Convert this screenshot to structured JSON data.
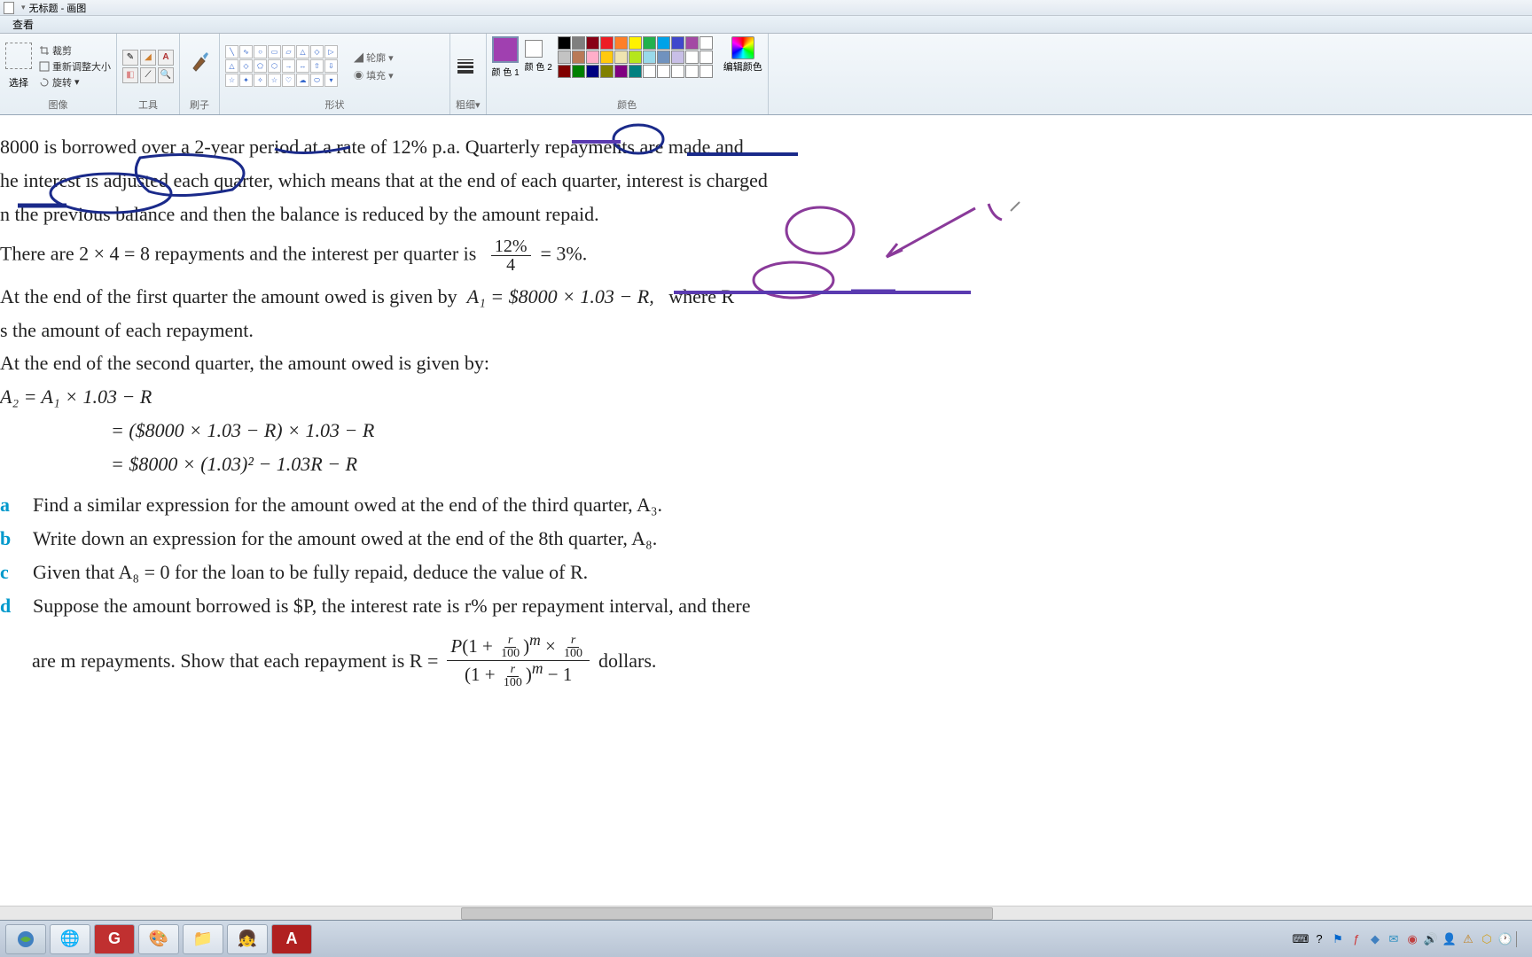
{
  "window": {
    "title": "无标题 - 画图",
    "menu_view": "查看"
  },
  "ribbon": {
    "image": {
      "label": "图像",
      "select": "选择",
      "crop": "裁剪",
      "resize": "重新调整大小",
      "rotate": "旋转"
    },
    "tools": {
      "label": "工具"
    },
    "brushes": {
      "label": "刷子"
    },
    "shapes": {
      "label": "形状",
      "outline": "轮廓",
      "fill": "填充"
    },
    "stroke": {
      "label": "粗细"
    },
    "colors": {
      "label": "颜色",
      "color1": "颜 色 1",
      "color2": "颜 色 2",
      "edit": "编辑颜色",
      "primary": "#a040b0",
      "secondary": "#ffffff",
      "palette_row1": [
        "#000000",
        "#7f7f7f",
        "#880015",
        "#ed1c24",
        "#ff7f27",
        "#fff200",
        "#22b14c",
        "#00a2e8",
        "#3f48cc",
        "#a349a4",
        "#ffffff"
      ],
      "palette_row2": [
        "#c3c3c3",
        "#b97a57",
        "#ffaec9",
        "#ffc90e",
        "#efe4b0",
        "#b5e61d",
        "#99d9ea",
        "#7092be",
        "#c8bfe7",
        "#ffffff",
        "#ffffff"
      ],
      "palette_row3": [
        "#800000",
        "#008000",
        "#000080",
        "#808000",
        "#800080",
        "#008080",
        "#ffffff",
        "#ffffff",
        "#ffffff",
        "#ffffff",
        "#ffffff"
      ]
    }
  },
  "doc": {
    "p1a": "8000 is borrowed over a 2-year period at a rate of 12% p.a. Quarterly repayments are made and",
    "p1b": "he interest is adjusted each quarter, which means that at the end of each quarter, interest is charged",
    "p1c": "n the previous balance and then the balance is reduced by the amount repaid.",
    "p2a": "There are  2 × 4 = 8  repayments and the interest per quarter is",
    "frac_num": "12%",
    "frac_den": "4",
    "p2b": "= 3%.",
    "p3a": "At the end of the first quarter the amount owed is given by",
    "eq1": "A₁ = $8000 × 1.03 − R,",
    "p3b": "where R",
    "p3c": "s the amount of each repayment.",
    "p4": "At the end of the second quarter, the amount owed is given by:",
    "eq2a": "A₂ = A₁ × 1.03 − R",
    "eq2b": "= ($8000 × 1.03 − R) × 1.03 − R",
    "eq2c": "= $8000 × (1.03)² − 1.03R − R",
    "qa": "Find a similar expression for the amount owed at the end of the third quarter, A₃.",
    "qb": "Write down an expression for the amount owed at the end of the 8th quarter, A₈.",
    "qc": "Given that  A₈ = 0  for the loan to be fully repaid, deduce the value of R.",
    "qd1": "Suppose the amount borrowed is $P, the interest rate is r% per repayment interval, and there",
    "qd2a": "are m repayments. Show that each repayment is   R =",
    "qd2b": "dollars.",
    "big_frac_num": "P(1 + r/100)^m × r/100",
    "big_frac_den": "(1 + r/100)^m − 1",
    "labels": {
      "a": "a",
      "b": "b",
      "c": "c",
      "d": "d"
    }
  },
  "annotations": {
    "blue": "#1a2a8a",
    "purple": "#8a3a9a",
    "purple_underline": "#5a3ab0"
  },
  "taskbar": {
    "icons": [
      "🌐",
      "G",
      "🎨",
      "📁",
      "👧",
      "A"
    ]
  }
}
